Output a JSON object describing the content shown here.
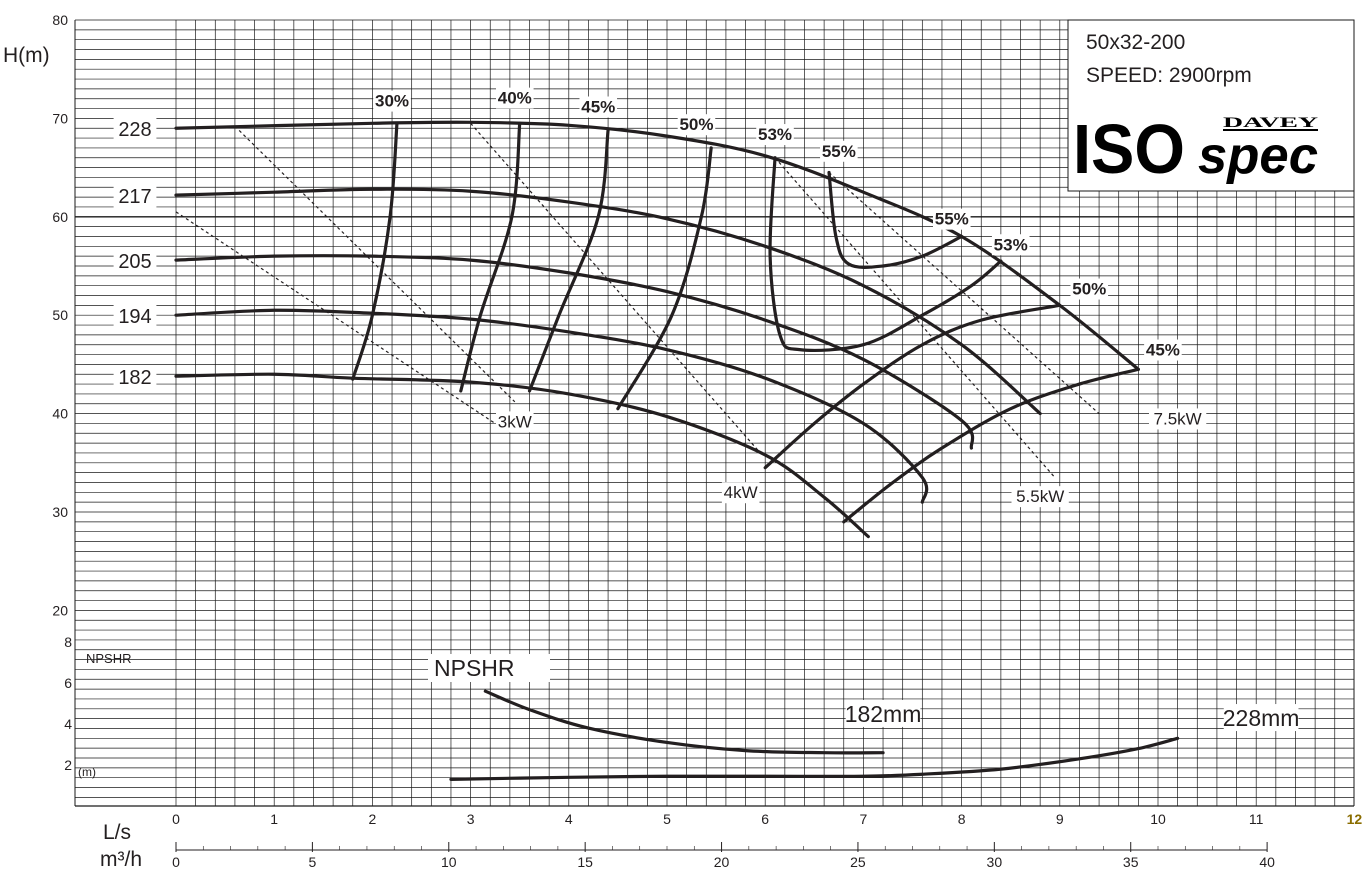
{
  "chart_data": {
    "type": "line",
    "model": "50x32-200",
    "speed": "SPEED: 2900rpm",
    "brand": "DAVEY",
    "logo_main": "ISO",
    "logo_sub": "spec",
    "ylabel": "H(m)",
    "ylim": [
      10,
      80
    ],
    "y_ticks": [
      20,
      30,
      40,
      50,
      60,
      70,
      80
    ],
    "x_ls_label": "L/s",
    "x_ls_ticks": [
      "0",
      "1",
      "2",
      "3",
      "4",
      "5",
      "6",
      "7",
      "8",
      "9",
      "10",
      "11",
      "12"
    ],
    "x_flow_label": "m³/h",
    "x_flow_ticks": [
      "0",
      "5",
      "10",
      "15",
      "20",
      "25",
      "30",
      "35",
      "40"
    ],
    "xlim_ls": [
      0,
      12
    ],
    "npshr_axis_label": "NPSHR",
    "npshr_unit": "(m)",
    "npshr_ticks": [
      "2",
      "4",
      "6",
      "8"
    ],
    "npshr_title": "NPSHR",
    "colors": {
      "curve": "#231f20",
      "grid": "#1a1a1a",
      "highlight_tick": "#8a6d00"
    },
    "head_curves": [
      {
        "label": "228",
        "points": [
          [
            0,
            69
          ],
          [
            2,
            69.5
          ],
          [
            3,
            69.6
          ],
          [
            4,
            69.3
          ],
          [
            5,
            68.2
          ],
          [
            6,
            66.2
          ],
          [
            7,
            62.5
          ],
          [
            8,
            58
          ],
          [
            9,
            51
          ],
          [
            9.8,
            44.5
          ]
        ]
      },
      {
        "label": "217",
        "points": [
          [
            0,
            62.2
          ],
          [
            1,
            62.5
          ],
          [
            2,
            62.8
          ],
          [
            3,
            62.6
          ],
          [
            4,
            61.5
          ],
          [
            5,
            59.8
          ],
          [
            6,
            57
          ],
          [
            7,
            53
          ],
          [
            8,
            47
          ],
          [
            8.8,
            40
          ]
        ]
      },
      {
        "label": "205",
        "points": [
          [
            0,
            55.6
          ],
          [
            1,
            56
          ],
          [
            2,
            56
          ],
          [
            3,
            55.6
          ],
          [
            4,
            54.3
          ],
          [
            5,
            52.4
          ],
          [
            6,
            49.5
          ],
          [
            7,
            45.5
          ],
          [
            8,
            39.3
          ],
          [
            8.1,
            36.5
          ]
        ]
      },
      {
        "label": "194",
        "points": [
          [
            0,
            50
          ],
          [
            1,
            50.5
          ],
          [
            2,
            50.2
          ],
          [
            3,
            49.6
          ],
          [
            4,
            48.3
          ],
          [
            5,
            46.5
          ],
          [
            6,
            43.6
          ],
          [
            7,
            39
          ],
          [
            7.6,
            33.5
          ],
          [
            7.6,
            31
          ]
        ]
      },
      {
        "label": "182",
        "points": [
          [
            0,
            43.8
          ],
          [
            1,
            44
          ],
          [
            1.8,
            43.6
          ],
          [
            3,
            43.2
          ],
          [
            4,
            42
          ],
          [
            5,
            39.7
          ],
          [
            6,
            35.8
          ],
          [
            6.6,
            31.5
          ],
          [
            7.05,
            27.5
          ]
        ]
      }
    ],
    "efficiency_curves": [
      {
        "label": "30%",
        "points": [
          [
            2.25,
            69.5
          ],
          [
            2.18,
            60
          ],
          [
            2,
            50
          ],
          [
            1.8,
            43.5
          ]
        ]
      },
      {
        "label": "40%",
        "points": [
          [
            3.5,
            69.5
          ],
          [
            3.42,
            60
          ],
          [
            3.1,
            50
          ],
          [
            2.9,
            42.3
          ]
        ]
      },
      {
        "label": "45%",
        "points": [
          [
            4.4,
            68.8
          ],
          [
            4.3,
            60
          ],
          [
            3.9,
            50
          ],
          [
            3.6,
            42.3
          ]
        ]
      },
      {
        "label": "50%",
        "points": [
          [
            5.45,
            67
          ],
          [
            5.35,
            60
          ],
          [
            5.05,
            50
          ],
          [
            4.5,
            40.5
          ]
        ]
      },
      {
        "label": "53%",
        "points": [
          [
            6.1,
            66
          ],
          [
            6.05,
            56
          ],
          [
            6.15,
            48
          ],
          [
            6.35,
            46.5
          ],
          [
            7,
            47
          ],
          [
            7.6,
            50
          ],
          [
            8.1,
            53
          ],
          [
            8.4,
            55.5
          ]
        ]
      },
      {
        "label": "55%",
        "points": [
          [
            6.65,
            64.5
          ],
          [
            6.72,
            58
          ],
          [
            6.85,
            55.2
          ],
          [
            7.2,
            55
          ],
          [
            7.6,
            56
          ],
          [
            8,
            58
          ]
        ]
      },
      {
        "label": "50%",
        "points": [
          [
            6,
            34.5
          ],
          [
            6.5,
            39
          ],
          [
            7,
            43
          ],
          [
            7.6,
            47
          ],
          [
            8.2,
            49.5
          ],
          [
            9,
            51
          ]
        ]
      },
      {
        "label": "45%",
        "points": [
          [
            6.8,
            29
          ],
          [
            7.3,
            33
          ],
          [
            7.8,
            36.5
          ],
          [
            8.5,
            40.5
          ],
          [
            9.2,
            43
          ],
          [
            9.8,
            44.5
          ]
        ]
      }
    ],
    "power_lines": [
      {
        "label": "3kW",
        "points": [
          [
            0.6,
            69.2
          ],
          [
            3.45,
            41.2
          ]
        ]
      },
      {
        "label": "",
        "points": [
          [
            0,
            60.5
          ],
          [
            3.25,
            39
          ]
        ]
      },
      {
        "label": "4kW",
        "points": [
          [
            3,
            69.5
          ],
          [
            5.95,
            36
          ]
        ]
      },
      {
        "label": "5.5kW",
        "points": [
          [
            6.1,
            66
          ],
          [
            8.95,
            33.5
          ]
        ]
      },
      {
        "label": "7.5kW",
        "points": [
          [
            6.65,
            64.5
          ],
          [
            9.4,
            40
          ]
        ]
      }
    ],
    "curve_labels": [
      {
        "text": "30%",
        "x": 2.2,
        "y": 71.2
      },
      {
        "text": "40%",
        "x": 3.45,
        "y": 71.5
      },
      {
        "text": "45%",
        "x": 4.3,
        "y": 70.6
      },
      {
        "text": "50%",
        "x": 5.3,
        "y": 68.8
      },
      {
        "text": "53%",
        "x": 6.1,
        "y": 67.8
      },
      {
        "text": "55%",
        "x": 6.75,
        "y": 66.1
      },
      {
        "text": "55%",
        "x": 7.9,
        "y": 59.2
      },
      {
        "text": "53%",
        "x": 8.5,
        "y": 56.6
      },
      {
        "text": "50%",
        "x": 9.3,
        "y": 52.1
      },
      {
        "text": "45%",
        "x": 10.05,
        "y": 45.9
      },
      {
        "text": "3kW",
        "x": 3.45,
        "y": 38.6
      },
      {
        "text": "4kW",
        "x": 5.75,
        "y": 31.4
      },
      {
        "text": "5.5kW",
        "x": 8.8,
        "y": 31
      },
      {
        "text": "7.5kW",
        "x": 10.2,
        "y": 38.9
      }
    ],
    "npshr_curves": [
      {
        "label": "182mm",
        "points": [
          [
            3.15,
            5.6
          ],
          [
            3.6,
            4.7
          ],
          [
            4.2,
            3.8
          ],
          [
            5,
            3.1
          ],
          [
            5.8,
            2.7
          ],
          [
            6.6,
            2.6
          ],
          [
            7.2,
            2.6
          ]
        ]
      },
      {
        "label": "228mm",
        "points": [
          [
            2.8,
            1.3
          ],
          [
            4,
            1.4
          ],
          [
            5,
            1.45
          ],
          [
            6,
            1.45
          ],
          [
            7,
            1.45
          ],
          [
            7.6,
            1.55
          ],
          [
            8.4,
            1.8
          ],
          [
            9.2,
            2.3
          ],
          [
            9.8,
            2.8
          ],
          [
            10.2,
            3.3
          ]
        ]
      }
    ],
    "npshr_curve_labels": [
      {
        "text": "182mm",
        "x": 7.2,
        "y": 4.1
      },
      {
        "text": "228mm",
        "x": 11.05,
        "y": 3.9
      }
    ]
  }
}
